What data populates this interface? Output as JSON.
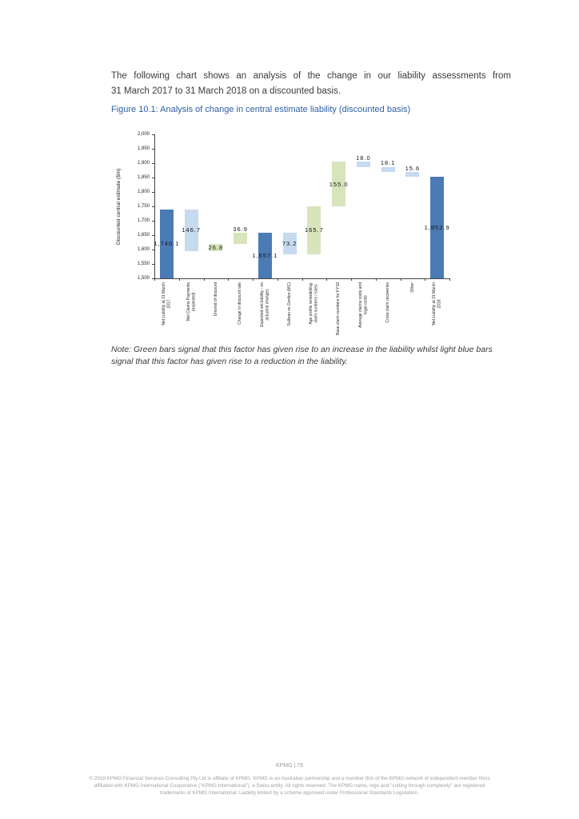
{
  "page": {
    "intro_line1": "The following chart shows an analysis of the change in our liability assessments from",
    "intro_line2": "31 March 2017 to 31 March 2018 on a discounted basis.",
    "figure_caption": "Figure 10.1: Analysis of change in central estimate liability (discounted basis)",
    "note_line1": "Note: Green bars signal that this factor has given rise to an increase in the liability whilst light blue bars",
    "note_line2": "signal that this factor has given rise to a reduction in the liability."
  },
  "footer": {
    "page_label": "KPMG  |  79",
    "disclaimer_line1": "© 2018 KPMG Financial Services Consulting Pty Ltd is affiliate of KPMG. KPMG is an Australian partnership and a member firm of the KPMG network of independent member firms",
    "disclaimer_line2": "affiliated with KPMG International Cooperative (\"KPMG International\"), a Swiss entity. All rights reserved. The KPMG name, logo and \"cutting through complexity\" are registered",
    "disclaimer_line3": "trademarks of KPMG International. Liability limited by a scheme approved under Professional Standards Legislation."
  },
  "chart_data": {
    "type": "bar",
    "subtype": "waterfall",
    "title": "Figure 10.1: Analysis of change in central estimate liability (discounted basis)",
    "ylabel": "Discounted central estimate ($m)",
    "ylim": [
      1500,
      2000
    ],
    "ytick_step": 50,
    "ytick_labels": [
      "2,000",
      "1,950",
      "1,900",
      "1,850",
      "1,800",
      "1,750",
      "1,700",
      "1,650",
      "1,600",
      "1,550",
      "1,500"
    ],
    "grid": false,
    "legend": "none",
    "colors": {
      "total_dark_blue": "#4b7bb5",
      "decrease_light_blue": "#c6daf0",
      "increase_green": "#d7e4bc"
    },
    "bars": [
      {
        "category": "Net Liability at 31 March 2017",
        "category_lines": [
          "Net Liability at 31 March",
          "2017"
        ],
        "value_label": "1,740.1",
        "delta": 1740.1,
        "kind": "total",
        "from": 1500,
        "to": 1740.1,
        "color": "dark",
        "label_pos": "center"
      },
      {
        "category": "Net Claims Payments (expected)",
        "category_lines": [
          "Net Claims Payments",
          "(expected)"
        ],
        "value_label": "146.7",
        "delta": -146.7,
        "kind": "decrease",
        "from": 1593.4,
        "to": 1740.1,
        "color": "light",
        "label_pos": "center"
      },
      {
        "category": "Unwind of discount",
        "category_lines": [
          "Unwind of discount"
        ],
        "value_label": "26.8",
        "delta": 26.8,
        "kind": "increase",
        "from": 1593.4,
        "to": 1620.2,
        "color": "green",
        "label_pos": "center"
      },
      {
        "category": "Change in discount rate",
        "category_lines": [
          "Change in discount rate"
        ],
        "value_label": "36.9",
        "delta": 36.9,
        "kind": "increase",
        "from": 1620.2,
        "to": 1657.1,
        "color": "green",
        "label_pos": "above"
      },
      {
        "category": "Expected net liability - no actuarial changes",
        "category_lines": [
          "Expected net liability - no",
          "actuarial changes"
        ],
        "value_label": "1,657.1",
        "delta": 1657.1,
        "kind": "subtotal",
        "from": 1500,
        "to": 1657.1,
        "color": "dark",
        "label_pos": "center"
      },
      {
        "category": "Sullivan vs Gordon (MC)",
        "category_lines": [
          "Sullivan vs Gordon (MC)"
        ],
        "value_label": "73.2",
        "delta": -73.2,
        "kind": "decrease",
        "from": 1583.9,
        "to": 1657.1,
        "color": "light",
        "label_pos": "center"
      },
      {
        "category": "Age profile remodelling: claim numbers / sizes",
        "category_lines": [
          "Age profile remodelling:",
          "claim numbers / sizes"
        ],
        "value_label": "165.7",
        "delta": 165.7,
        "kind": "increase",
        "from": 1583.9,
        "to": 1749.6,
        "color": "green",
        "label_pos": "center"
      },
      {
        "category": "Base claim numbers for FY19",
        "category_lines": [
          "Base claim numbers for FY19"
        ],
        "value_label": "155.0",
        "delta": 155.0,
        "kind": "increase",
        "from": 1749.6,
        "to": 1904.6,
        "color": "green",
        "label_pos": "center"
      },
      {
        "category": "Average claims costs and legal costs",
        "category_lines": [
          "Average claims costs and",
          "legal costs"
        ],
        "value_label": "18.0",
        "delta": -18.0,
        "kind": "decrease",
        "from": 1886.6,
        "to": 1904.6,
        "color": "light",
        "label_pos": "above"
      },
      {
        "category": "Cross claim recoveries",
        "category_lines": [
          "Cross claim recoveries"
        ],
        "value_label": "18.1",
        "delta": -18.1,
        "kind": "decrease",
        "from": 1868.5,
        "to": 1886.6,
        "color": "light",
        "label_pos": "above"
      },
      {
        "category": "Other",
        "category_lines": [
          "Other"
        ],
        "value_label": "15.6",
        "delta": -15.6,
        "kind": "decrease",
        "from": 1852.9,
        "to": 1868.5,
        "color": "light",
        "label_pos": "above"
      },
      {
        "category": "Net Liability at 31 March 2018",
        "category_lines": [
          "Net Liability at 31 March",
          "2018"
        ],
        "value_label": "1,852.9",
        "delta": 1852.9,
        "kind": "total",
        "from": 1500,
        "to": 1852.9,
        "color": "dark",
        "label_pos": "center"
      }
    ]
  }
}
